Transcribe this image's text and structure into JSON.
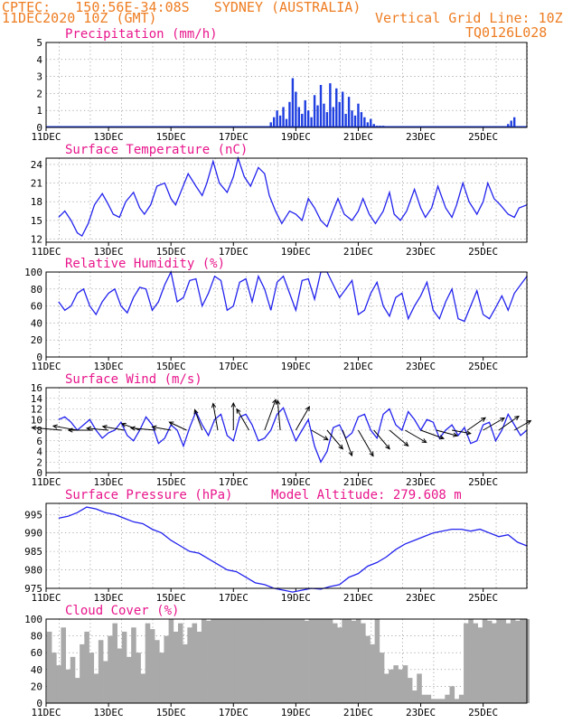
{
  "header": {
    "line1": "CPTEC:   150:56E-34:08S   SYDNEY (AUSTRALIA)",
    "line2_left": "11DEC2020 10Z (GMT)",
    "line2_right": "Vertical Grid Line: 10Z",
    "line3_right": "TQ0126L028"
  },
  "colors": {
    "header": "#ee7d22",
    "title": "#e8168c",
    "line": "#2222ee",
    "bar": "#1f3fe0",
    "cloud": "#a9a9a9"
  },
  "chart_data": [
    {
      "type": "bar",
      "title": "Precipitation (mm/h)",
      "x_ticks": [
        "11DEC",
        "13DEC",
        "15DEC",
        "17DEC",
        "19DEC",
        "21DEC",
        "23DEC",
        "25DEC"
      ],
      "ylim": [
        0,
        5
      ],
      "y_ticks": [
        0,
        1,
        2,
        3,
        4,
        5
      ],
      "x": [
        7.2,
        7.3,
        7.4,
        7.5,
        7.6,
        7.7,
        7.8,
        7.9,
        8.0,
        8.1,
        8.2,
        8.3,
        8.4,
        8.5,
        8.6,
        8.7,
        8.8,
        8.9,
        9.0,
        9.1,
        9.2,
        9.3,
        9.4,
        9.5,
        9.6,
        9.7,
        9.8,
        9.9,
        10.0,
        10.1,
        10.2,
        10.3,
        10.4,
        10.5,
        10.6,
        10.7,
        10.8,
        11.0,
        11.5,
        12.0,
        14.8,
        14.9,
        15.0
      ],
      "values": [
        0.3,
        0.6,
        1.0,
        0.7,
        1.2,
        0.5,
        1.5,
        2.9,
        2.1,
        1.2,
        0.8,
        1.6,
        1.0,
        0.6,
        1.9,
        1.3,
        2.5,
        1.4,
        0.9,
        2.6,
        1.2,
        2.3,
        1.5,
        2.1,
        0.8,
        1.8,
        1.0,
        0.7,
        1.4,
        0.9,
        0.6,
        0.3,
        0.5,
        0.2,
        0.1,
        0.1,
        0.1,
        0.05,
        0.05,
        0.05,
        0.2,
        0.4,
        0.6
      ],
      "x_unit": "days after 11DEC 00Z"
    },
    {
      "type": "line",
      "title": "Surface Temperature (nC)",
      "x_ticks": [
        "11DEC",
        "13DEC",
        "15DEC",
        "17DEC",
        "19DEC",
        "21DEC",
        "23DEC",
        "25DEC"
      ],
      "ylim": [
        11.5,
        25
      ],
      "y_ticks": [
        12,
        15,
        18,
        21,
        24
      ],
      "x": [
        0.4,
        0.6,
        0.8,
        1.0,
        1.15,
        1.35,
        1.55,
        1.8,
        2.0,
        2.15,
        2.35,
        2.55,
        2.8,
        3.0,
        3.15,
        3.35,
        3.55,
        3.8,
        4.0,
        4.15,
        4.35,
        4.55,
        4.8,
        5.0,
        5.15,
        5.35,
        5.55,
        5.8,
        6.0,
        6.15,
        6.35,
        6.55,
        6.8,
        7.0,
        7.15,
        7.35,
        7.55,
        7.8,
        8.0,
        8.2,
        8.4,
        8.6,
        8.8,
        9.0,
        9.15,
        9.35,
        9.55,
        9.8,
        10.0,
        10.15,
        10.35,
        10.55,
        10.8,
        11.0,
        11.15,
        11.35,
        11.55,
        11.8,
        12.0,
        12.15,
        12.35,
        12.55,
        12.8,
        13.0,
        13.15,
        13.35,
        13.55,
        13.8,
        14.0,
        14.15,
        14.35,
        14.55,
        14.8,
        15.0,
        15.15,
        15.4
      ],
      "values": [
        15.5,
        16.5,
        15.0,
        13.0,
        12.5,
        14.5,
        17.5,
        19.3,
        17.5,
        16.0,
        15.5,
        18.0,
        19.5,
        17.0,
        16.0,
        17.5,
        20.5,
        21.0,
        18.5,
        17.5,
        20.0,
        22.5,
        20.5,
        19.0,
        21.0,
        24.5,
        21.0,
        19.5,
        22.0,
        25.0,
        22.0,
        20.5,
        23.5,
        22.5,
        19.0,
        16.5,
        14.5,
        16.5,
        16.0,
        15.0,
        18.5,
        17.0,
        15.0,
        14.0,
        16.0,
        18.5,
        16.0,
        15.0,
        16.5,
        18.5,
        16.0,
        14.5,
        16.5,
        19.5,
        16.0,
        15.0,
        16.5,
        20.0,
        17.0,
        15.5,
        17.0,
        20.5,
        17.0,
        15.5,
        17.5,
        21.0,
        18.0,
        16.0,
        18.0,
        21.0,
        18.5,
        17.5,
        16.0,
        15.5,
        17.0,
        17.5
      ]
    },
    {
      "type": "line",
      "title": "Relative Humidity (%)",
      "x_ticks": [
        "11DEC",
        "13DEC",
        "15DEC",
        "17DEC",
        "19DEC",
        "21DEC",
        "23DEC",
        "25DEC"
      ],
      "ylim": [
        0,
        100
      ],
      "y_ticks": [
        0,
        20,
        40,
        60,
        80,
        100
      ],
      "x": [
        0.4,
        0.6,
        0.8,
        1.0,
        1.2,
        1.4,
        1.6,
        1.8,
        2.0,
        2.2,
        2.4,
        2.6,
        2.8,
        3.0,
        3.2,
        3.4,
        3.6,
        3.8,
        4.0,
        4.2,
        4.4,
        4.6,
        4.8,
        5.0,
        5.2,
        5.4,
        5.6,
        5.8,
        6.0,
        6.2,
        6.4,
        6.6,
        6.8,
        7.0,
        7.2,
        7.4,
        7.6,
        7.8,
        8.0,
        8.2,
        8.4,
        8.6,
        8.8,
        9.0,
        9.2,
        9.4,
        9.6,
        9.8,
        10.0,
        10.2,
        10.4,
        10.6,
        10.8,
        11.0,
        11.2,
        11.4,
        11.6,
        11.8,
        12.0,
        12.2,
        12.4,
        12.6,
        12.8,
        13.0,
        13.2,
        13.4,
        13.6,
        13.8,
        14.0,
        14.2,
        14.4,
        14.6,
        14.8,
        15.0,
        15.2,
        15.4
      ],
      "values": [
        65,
        55,
        60,
        75,
        80,
        60,
        50,
        65,
        75,
        80,
        60,
        52,
        70,
        82,
        80,
        55,
        65,
        85,
        100,
        65,
        70,
        90,
        92,
        60,
        75,
        95,
        90,
        55,
        60,
        88,
        92,
        65,
        95,
        80,
        55,
        88,
        95,
        75,
        55,
        90,
        92,
        68,
        100,
        100,
        85,
        70,
        80,
        90,
        50,
        55,
        75,
        88,
        60,
        48,
        70,
        75,
        45,
        60,
        72,
        88,
        55,
        45,
        65,
        80,
        45,
        42,
        60,
        78,
        50,
        45,
        58,
        72,
        55,
        75,
        85,
        95
      ]
    },
    {
      "type": "line",
      "title": "Surface Wind (m/s)",
      "x_ticks": [
        "11DEC",
        "13DEC",
        "15DEC",
        "17DEC",
        "19DEC",
        "21DEC",
        "23DEC",
        "25DEC"
      ],
      "ylim": [
        0,
        16
      ],
      "y_ticks": [
        0,
        2,
        4,
        6,
        8,
        10,
        12,
        14,
        16
      ],
      "x": [
        0.4,
        0.6,
        0.8,
        1.0,
        1.2,
        1.4,
        1.6,
        1.8,
        2.0,
        2.2,
        2.4,
        2.6,
        2.8,
        3.0,
        3.2,
        3.4,
        3.6,
        3.8,
        4.0,
        4.2,
        4.4,
        4.6,
        4.8,
        5.0,
        5.2,
        5.4,
        5.6,
        5.8,
        6.0,
        6.2,
        6.4,
        6.6,
        6.8,
        7.0,
        7.2,
        7.4,
        7.6,
        7.8,
        8.0,
        8.2,
        8.4,
        8.6,
        8.8,
        9.0,
        9.2,
        9.4,
        9.6,
        9.8,
        10.0,
        10.2,
        10.4,
        10.6,
        10.8,
        11.0,
        11.2,
        11.4,
        11.6,
        11.8,
        12.0,
        12.2,
        12.4,
        12.6,
        12.8,
        13.0,
        13.2,
        13.4,
        13.6,
        13.8,
        14.0,
        14.2,
        14.4,
        14.6,
        14.8,
        15.0,
        15.2,
        15.4
      ],
      "values": [
        10,
        10.5,
        9.5,
        8,
        9,
        10,
        8,
        6.5,
        7.5,
        8,
        9.5,
        7,
        6,
        8,
        10.5,
        9,
        5.5,
        6.5,
        9,
        8,
        5,
        8.5,
        11.5,
        9,
        7,
        10,
        11,
        7,
        6,
        10.5,
        11,
        9,
        6,
        6.5,
        8,
        11,
        12.2,
        9,
        6,
        8,
        10,
        5,
        2,
        4,
        8.5,
        9,
        6.5,
        7.5,
        10.5,
        11,
        8,
        6.5,
        11,
        12,
        9,
        8,
        11.5,
        10,
        8,
        10,
        9.5,
        6.5,
        8,
        9,
        7,
        8.5,
        5.5,
        6,
        9,
        9.5,
        6,
        8,
        11,
        9,
        7,
        8
      ],
      "arrows": [
        {
          "x": 0.5,
          "dir_deg": 95,
          "speed": 11
        },
        {
          "x": 1.0,
          "dir_deg": 100,
          "speed": 9
        },
        {
          "x": 1.5,
          "dir_deg": 90,
          "speed": 9
        },
        {
          "x": 2.0,
          "dir_deg": 95,
          "speed": 8
        },
        {
          "x": 2.5,
          "dir_deg": 100,
          "speed": 8
        },
        {
          "x": 3.0,
          "dir_deg": 110,
          "speed": 7
        },
        {
          "x": 3.5,
          "dir_deg": 95,
          "speed": 9
        },
        {
          "x": 4.0,
          "dir_deg": 100,
          "speed": 7
        },
        {
          "x": 4.5,
          "dir_deg": 115,
          "speed": 7
        },
        {
          "x": 5.0,
          "dir_deg": 160,
          "speed": 8
        },
        {
          "x": 5.5,
          "dir_deg": 170,
          "speed": 10
        },
        {
          "x": 6.0,
          "dir_deg": 180,
          "speed": 10
        },
        {
          "x": 6.5,
          "dir_deg": 150,
          "speed": 9
        },
        {
          "x": 7.0,
          "dir_deg": 200,
          "speed": 12
        },
        {
          "x": 7.5,
          "dir_deg": 175,
          "speed": 11
        },
        {
          "x": 8.0,
          "dir_deg": 210,
          "speed": 10
        },
        {
          "x": 8.5,
          "dir_deg": 300,
          "speed": 7
        },
        {
          "x": 9.0,
          "dir_deg": 320,
          "speed": 9
        },
        {
          "x": 9.5,
          "dir_deg": 340,
          "speed": 10
        },
        {
          "x": 10.0,
          "dir_deg": 330,
          "speed": 11
        },
        {
          "x": 10.5,
          "dir_deg": 320,
          "speed": 9
        },
        {
          "x": 11.0,
          "dir_deg": 310,
          "speed": 9
        },
        {
          "x": 11.5,
          "dir_deg": 300,
          "speed": 9
        },
        {
          "x": 12.0,
          "dir_deg": 290,
          "speed": 9
        },
        {
          "x": 12.5,
          "dir_deg": 285,
          "speed": 8
        },
        {
          "x": 13.0,
          "dir_deg": 280,
          "speed": 7
        },
        {
          "x": 13.5,
          "dir_deg": 235,
          "speed": 8
        },
        {
          "x": 14.0,
          "dir_deg": 240,
          "speed": 9
        },
        {
          "x": 14.5,
          "dir_deg": 235,
          "speed": 9
        },
        {
          "x": 15.0,
          "dir_deg": 240,
          "speed": 7
        }
      ]
    },
    {
      "type": "line",
      "title": "Surface Pressure (hPa)",
      "annotation": "Model Altitude: 279.608 m",
      "x_ticks": [
        "11DEC",
        "13DEC",
        "15DEC",
        "17DEC",
        "19DEC",
        "21DEC",
        "23DEC",
        "25DEC"
      ],
      "ylim": [
        975,
        998
      ],
      "y_ticks": [
        975,
        980,
        985,
        990,
        995
      ],
      "x": [
        0.4,
        0.7,
        1.0,
        1.3,
        1.6,
        1.9,
        2.2,
        2.5,
        2.8,
        3.1,
        3.4,
        3.7,
        4.0,
        4.3,
        4.6,
        4.9,
        5.2,
        5.5,
        5.8,
        6.1,
        6.4,
        6.7,
        7.0,
        7.3,
        7.6,
        7.9,
        8.2,
        8.5,
        8.8,
        9.1,
        9.4,
        9.7,
        10.0,
        10.3,
        10.6,
        10.9,
        11.2,
        11.5,
        11.8,
        12.1,
        12.4,
        12.7,
        13.0,
        13.3,
        13.6,
        13.9,
        14.2,
        14.5,
        14.8,
        15.1,
        15.4
      ],
      "values": [
        994,
        994.5,
        995.5,
        997,
        996.5,
        995.5,
        995,
        994,
        993,
        992.5,
        991,
        990,
        988,
        986.5,
        985,
        984.5,
        983,
        981.5,
        980,
        979.5,
        978,
        976.5,
        976,
        975,
        974.5,
        974,
        974.5,
        975,
        974.8,
        975.5,
        976,
        978,
        979,
        981,
        982,
        983.5,
        985.5,
        987,
        988,
        989,
        990,
        990.5,
        991,
        991,
        990.5,
        991,
        990,
        989,
        989.5,
        987.5,
        986.5
      ]
    },
    {
      "type": "bar",
      "title": "Cloud Cover (%)",
      "x_ticks": [
        "11DEC",
        "13DEC",
        "15DEC",
        "17DEC",
        "19DEC",
        "21DEC",
        "23DEC",
        "25DEC"
      ],
      "ylim": [
        0,
        100
      ],
      "y_ticks": [
        0,
        20,
        40,
        60,
        80,
        100
      ],
      "x": [
        0.1,
        0.25,
        0.4,
        0.55,
        0.7,
        0.85,
        1.0,
        1.15,
        1.3,
        1.45,
        1.6,
        1.75,
        1.9,
        2.05,
        2.2,
        2.35,
        2.5,
        2.65,
        2.8,
        2.95,
        3.1,
        3.25,
        3.4,
        3.55,
        3.7,
        3.85,
        4.0,
        4.15,
        4.3,
        4.45,
        4.6,
        4.75,
        4.9,
        5.05,
        5.2,
        5.35,
        5.5,
        5.65,
        5.8,
        5.95,
        6.1,
        6.25,
        6.4,
        6.55,
        6.7,
        6.85,
        7.0,
        7.15,
        7.3,
        7.45,
        7.6,
        7.75,
        7.9,
        8.05,
        8.2,
        8.35,
        8.5,
        8.65,
        8.8,
        8.95,
        9.1,
        9.25,
        9.4,
        9.55,
        9.7,
        9.85,
        10.0,
        10.15,
        10.3,
        10.45,
        10.6,
        10.75,
        10.9,
        11.05,
        11.2,
        11.35,
        11.5,
        11.65,
        11.8,
        11.95,
        12.1,
        12.25,
        12.4,
        12.55,
        12.7,
        12.85,
        13.0,
        13.15,
        13.3,
        13.45,
        13.6,
        13.75,
        13.9,
        14.05,
        14.2,
        14.35,
        14.5,
        14.65,
        14.8,
        14.95,
        15.1,
        15.25,
        15.4
      ],
      "values": [
        85,
        60,
        45,
        90,
        40,
        55,
        30,
        70,
        85,
        60,
        35,
        75,
        50,
        80,
        95,
        65,
        85,
        55,
        90,
        60,
        35,
        95,
        88,
        75,
        60,
        80,
        100,
        85,
        95,
        70,
        90,
        95,
        85,
        100,
        98,
        100,
        100,
        100,
        100,
        100,
        100,
        100,
        100,
        100,
        100,
        100,
        100,
        100,
        100,
        100,
        100,
        100,
        100,
        100,
        100,
        98,
        100,
        100,
        100,
        100,
        100,
        95,
        90,
        100,
        100,
        98,
        100,
        95,
        80,
        70,
        100,
        60,
        35,
        40,
        45,
        40,
        45,
        30,
        15,
        35,
        10,
        10,
        5,
        5,
        5,
        10,
        20,
        5,
        10,
        95,
        100,
        95,
        90,
        100,
        98,
        95,
        100,
        100,
        95,
        100,
        98,
        100,
        100
      ]
    }
  ]
}
